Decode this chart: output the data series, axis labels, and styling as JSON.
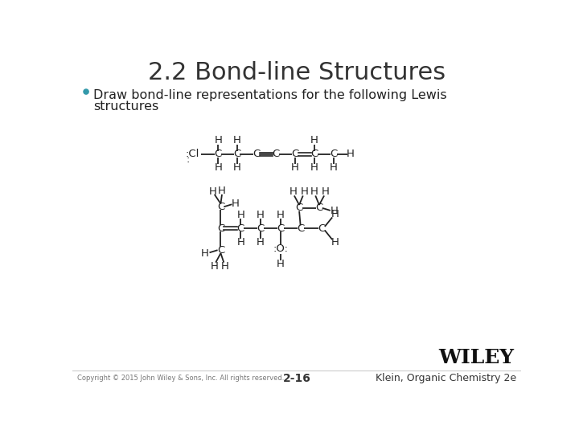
{
  "title": "2.2 Bond-line Structures",
  "bullet_color": "#3399aa",
  "text_color": "#222222",
  "bg_color": "#ffffff",
  "footer_copyright": "Copyright © 2015 John Wiley & Sons, Inc. All rights reserved.",
  "footer_page": "2-16",
  "footer_right": "Klein, Organic Chemistry 2e",
  "wiley_text": "WILEY"
}
